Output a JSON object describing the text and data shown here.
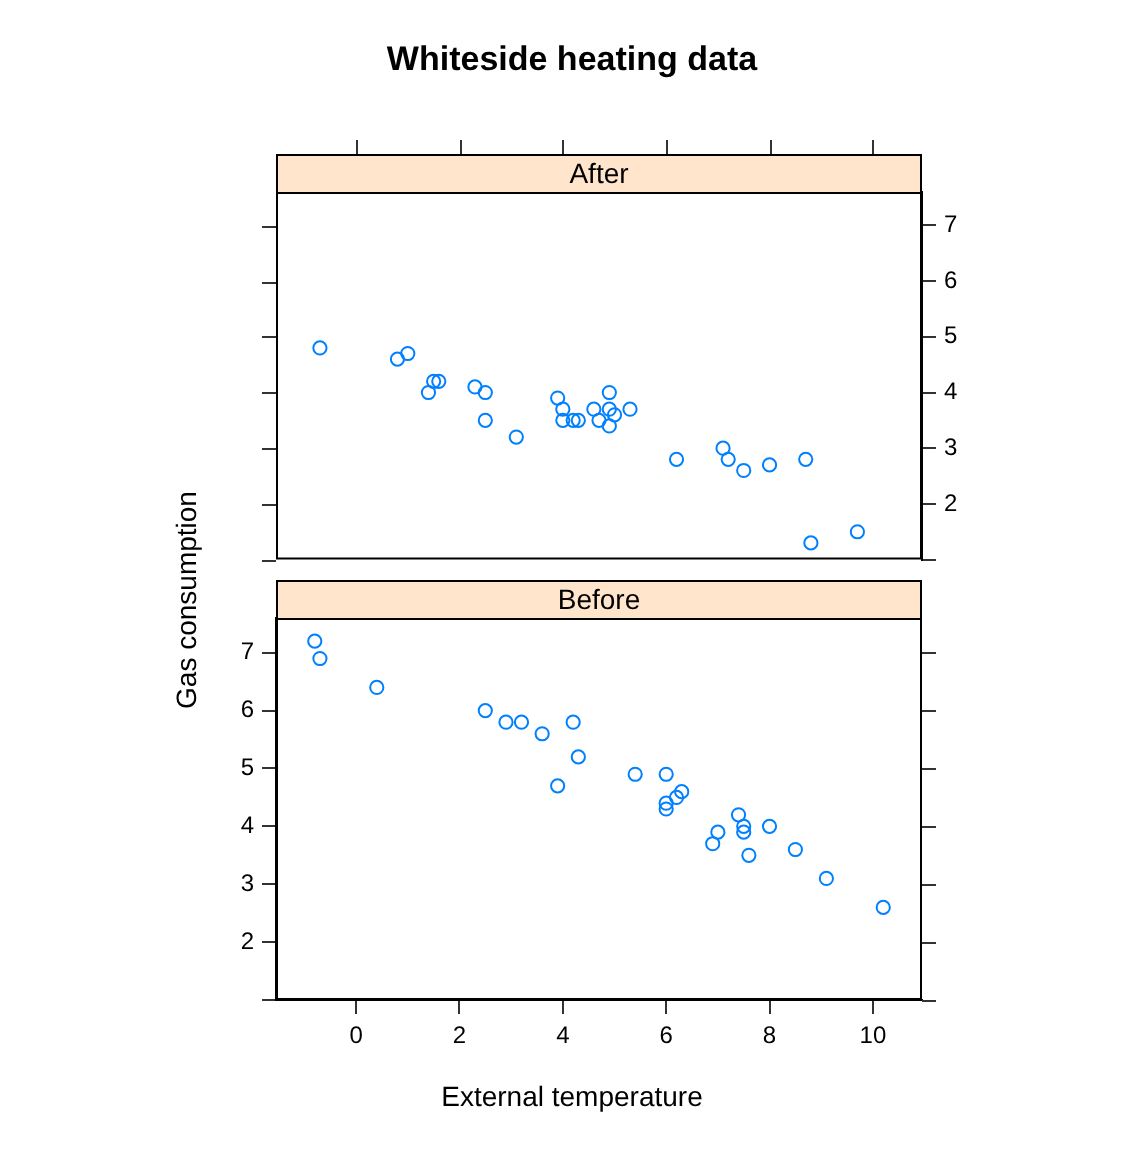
{
  "chart_data": [
    {
      "type": "scatter",
      "title": "Whiteside heating data",
      "subtitle": "After",
      "marker": "circle",
      "legend": false,
      "grid": false,
      "tick_labels": "y",
      "xlim": [
        -1.55,
        10.95
      ],
      "xticks": [
        0,
        2,
        4,
        6,
        8,
        10
      ],
      "ylim": [
        1,
        7.6
      ],
      "yticks": [
        {
          "value": 1,
          "label": null
        },
        2,
        3,
        4,
        5,
        6,
        7
      ],
      "series": [
        {
          "color": "#0080ff",
          "x": [
            -0.7,
            0.8,
            1.0,
            1.4,
            1.5,
            1.6,
            2.3,
            2.5,
            2.5,
            3.1,
            3.9,
            4.0,
            4.0,
            4.2,
            4.3,
            4.6,
            4.7,
            4.9,
            4.9,
            4.9,
            5.0,
            5.3,
            6.2,
            7.1,
            7.2,
            7.5,
            8.0,
            8.7,
            8.8,
            9.7
          ],
          "values": [
            4.8,
            4.6,
            4.7,
            4.0,
            4.2,
            4.2,
            4.1,
            4.0,
            3.5,
            3.2,
            3.9,
            3.5,
            3.7,
            3.5,
            3.5,
            3.7,
            3.5,
            3.4,
            3.7,
            4.0,
            3.6,
            3.7,
            2.8,
            3.0,
            2.8,
            2.6,
            2.7,
            2.8,
            1.3,
            1.5
          ]
        }
      ]
    },
    {
      "type": "scatter",
      "subtitle": "Before",
      "xlabel": "External temperature",
      "ylabel": "Gas consumption",
      "marker": "circle",
      "legend": false,
      "grid": false,
      "xlim": [
        -1.55,
        10.95
      ],
      "xticks": [
        0,
        2,
        4,
        6,
        8,
        10
      ],
      "ylim": [
        1,
        7.6
      ],
      "yticks": [
        {
          "value": 1,
          "label": null
        },
        2,
        3,
        4,
        5,
        6,
        7
      ],
      "series": [
        {
          "color": "#0080ff",
          "x": [
            -0.8,
            -0.7,
            0.4,
            2.5,
            2.9,
            3.2,
            3.6,
            3.9,
            4.2,
            4.3,
            5.4,
            6.0,
            6.0,
            6.0,
            6.2,
            6.3,
            6.9,
            7.0,
            7.4,
            7.5,
            7.5,
            7.6,
            8.0,
            8.5,
            9.1,
            10.2
          ],
          "values": [
            7.2,
            6.9,
            6.4,
            6.0,
            5.8,
            5.8,
            5.6,
            4.7,
            5.8,
            5.2,
            4.9,
            4.9,
            4.3,
            4.4,
            4.5,
            4.6,
            3.7,
            3.9,
            4.2,
            4.0,
            3.9,
            3.5,
            4.0,
            3.6,
            3.1,
            2.6
          ]
        }
      ]
    }
  ]
}
